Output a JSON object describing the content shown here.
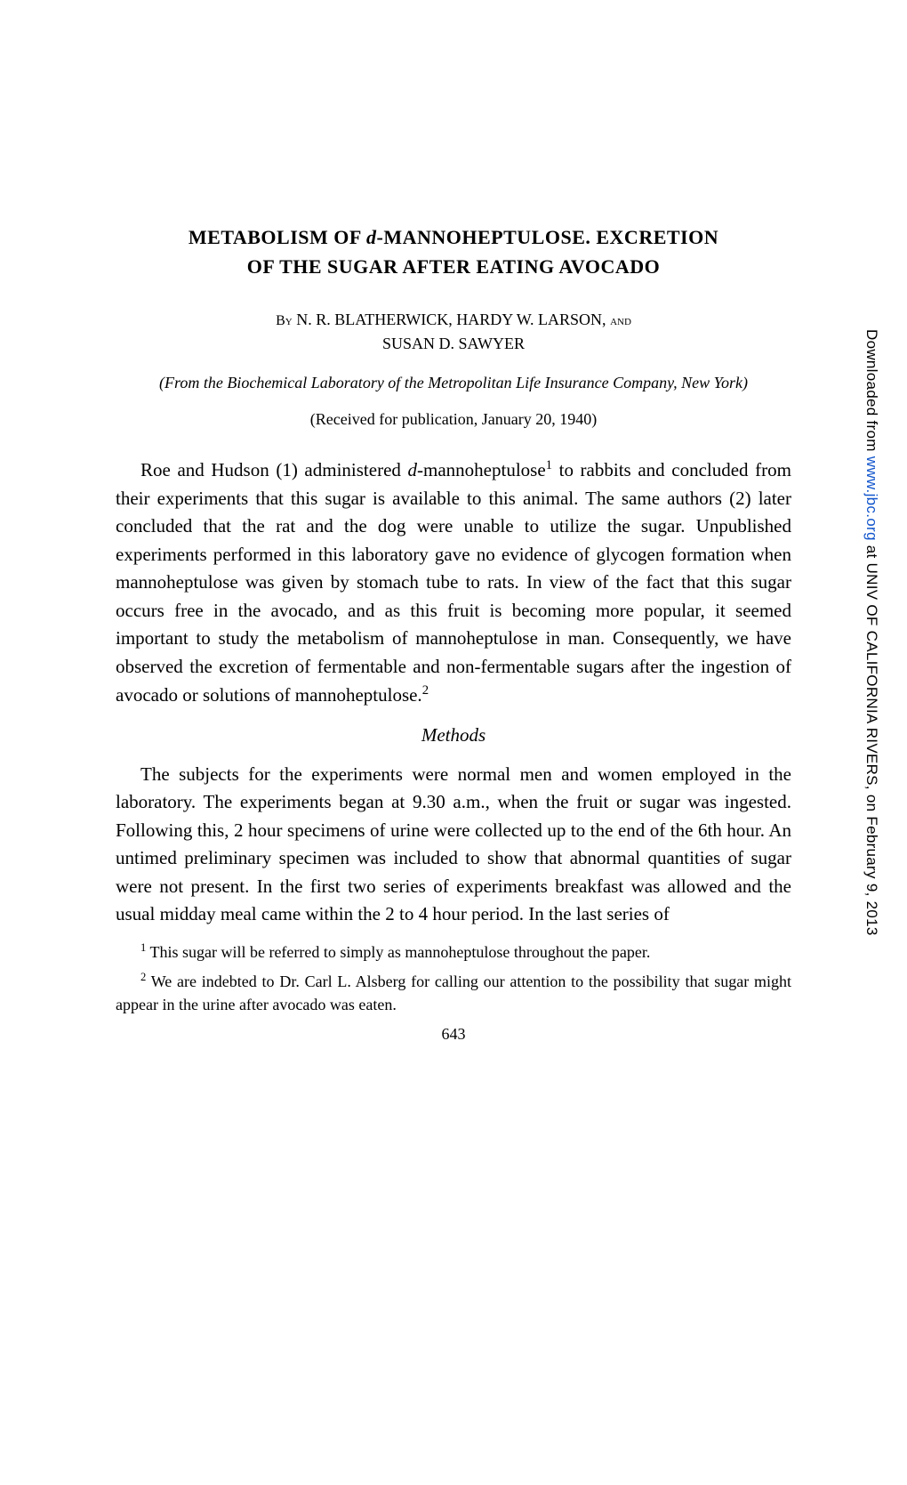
{
  "title": {
    "line1_part1": "METABOLISM OF ",
    "line1_italic": "d",
    "line1_part2": "-MANNOHEPTULOSE.   EXCRETION",
    "line2": "OF THE SUGAR AFTER EATING AVOCADO"
  },
  "authors": {
    "by_label": "By",
    "names_line1": " N. R. BLATHERWICK, HARDY W. LARSON, ",
    "and_label": "and",
    "names_line2": "SUSAN D. SAWYER"
  },
  "affiliation": "(From the Biochemical Laboratory of the Metropolitan Life Insurance Company, New York)",
  "received": "(Received for publication, January 20, 1940)",
  "paragraph1_part1": "Roe and Hudson (1) administered ",
  "paragraph1_italic": "d",
  "paragraph1_part2": "-mannoheptulose",
  "paragraph1_sup": "1",
  "paragraph1_part3": " to rabbits and concluded from their experiments that this sugar is available to this animal.  The same authors (2) later concluded that the rat and the dog were unable to utilize the sugar.  Unpublished experiments performed in this laboratory gave no evidence of glycogen formation when mannoheptulose was given by stomach tube to rats.  In view of the fact that this sugar occurs free in the avocado, and as this fruit is becoming more popular, it seemed important to study the metabolism of mannoheptulose in man. Consequently, we have observed the excretion of fermentable and non-fermentable sugars after the ingestion of avocado or solutions of mannoheptulose.",
  "paragraph1_sup2": "2",
  "section_heading": "Methods",
  "paragraph2": "The subjects for the experiments were normal men and women employed in the laboratory.  The experiments began at 9.30 a.m., when the fruit or sugar was ingested.  Following this, 2 hour specimens of urine were collected up to the end of the 6th hour. An untimed preliminary specimen was included to show that abnormal quantities of sugar were not present.  In the first two series of experiments breakfast was allowed and the usual midday meal came within the 2 to 4 hour period.  In the last series of",
  "footnote1_sup": "1",
  "footnote1": " This sugar will be referred to simply as mannoheptulose throughout the paper.",
  "footnote2_sup": "2",
  "footnote2": " We are indebted to Dr. Carl L. Alsberg for calling our attention to the possibility that sugar might appear in the urine after avocado was eaten.",
  "page_number": "643",
  "sidebar": {
    "prefix": "Downloaded from ",
    "link_text": "www.jbc.org",
    "suffix": " at UNIV OF CALIFORNIA RIVERS, on February 9, 2013"
  },
  "colors": {
    "background": "#ffffff",
    "text": "#000000",
    "link": "#1155cc"
  }
}
